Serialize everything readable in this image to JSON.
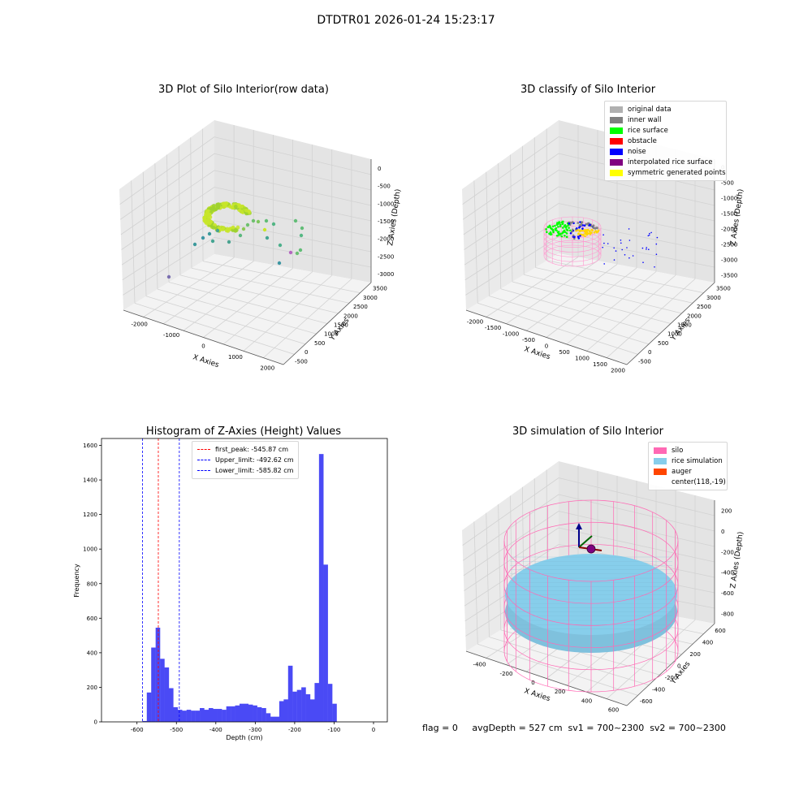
{
  "suptitle": "DTDTR01 2026-01-24 15:23:17",
  "footer": "flag = 0     avgDepth = 527 cm  sv1 = 700~2300  sv2 = 700~2300",
  "colors": {
    "histogram_bar": "#4a4af5",
    "first_peak_line": "#ff0000",
    "limit_line": "#0000ff",
    "silo": "#ff69b4",
    "rice_simulation": "#87ceeb",
    "auger": "#ff4500"
  },
  "chart_data": [
    {
      "type": "scatter",
      "title": "3D Plot of Silo Interior(row data)",
      "xlabel": "X Axies",
      "ylabel": "Y Axies",
      "zlabel": "Z Axies (Depth)",
      "xticks": [
        "-2000",
        "-1000",
        "0",
        "1000",
        "2000"
      ],
      "yticks": [
        "-500",
        "0",
        "500",
        "1000",
        "1500",
        "2000",
        "2500",
        "3000",
        "3500"
      ],
      "zticks": [
        "0",
        "-500",
        "-1000",
        "-1500",
        "-2000",
        "-2500",
        "-3000"
      ],
      "xlim": [
        -2300,
        2300
      ],
      "ylim": [
        -700,
        3700
      ],
      "zlim": [
        -3200,
        200
      ]
    },
    {
      "type": "scatter",
      "title": "3D classify of Silo Interior",
      "xlabel": "X Axies",
      "ylabel": "Y Axies",
      "zlabel": "Z Axies (Depth)",
      "xticks": [
        "-2000",
        "-1500",
        "-1000",
        "-500",
        "0",
        "500",
        "1000",
        "1500",
        "2000"
      ],
      "yticks": [
        "-500",
        "0",
        "500",
        "1000",
        "1500",
        "2000",
        "2500",
        "3000",
        "3500"
      ],
      "zticks": [
        "0",
        "-500",
        "-1000",
        "-1500",
        "-2000",
        "-2500",
        "-3000",
        "-3500"
      ],
      "legend": [
        {
          "label": "original data",
          "color": "#b0b0b0"
        },
        {
          "label": "inner wall",
          "color": "#808080"
        },
        {
          "label": "rice surface",
          "color": "#00ff00"
        },
        {
          "label": "obstacle",
          "color": "#ff0000"
        },
        {
          "label": "noise",
          "color": "#0000ff"
        },
        {
          "label": "interpolated rice surface",
          "color": "#800080"
        },
        {
          "label": "symmetric generated points",
          "color": "#ffff00"
        }
      ],
      "legend_position": "top-right"
    },
    {
      "type": "bar",
      "title": "Histogram of Z-Axies (Height) Values",
      "xlabel": "Depth (cm)",
      "ylabel": "Frequency",
      "xlim": [
        -690,
        35
      ],
      "ylim": [
        0,
        1640
      ],
      "xticks": [
        -600,
        -500,
        -400,
        -300,
        -200,
        -100,
        0
      ],
      "yticks": [
        0,
        200,
        400,
        600,
        800,
        1000,
        1200,
        1400,
        1600
      ],
      "bin_width": 11.17,
      "bins": [
        {
          "x0": -586.3,
          "y": 5
        },
        {
          "x0": -575.1,
          "y": 170
        },
        {
          "x0": -563.9,
          "y": 430
        },
        {
          "x0": -552.7,
          "y": 545
        },
        {
          "x0": -541.5,
          "y": 365
        },
        {
          "x0": -530.3,
          "y": 315
        },
        {
          "x0": -519.1,
          "y": 195
        },
        {
          "x0": -507.9,
          "y": 85
        },
        {
          "x0": -496.7,
          "y": 70
        },
        {
          "x0": -485.5,
          "y": 65
        },
        {
          "x0": -474.3,
          "y": 70
        },
        {
          "x0": -463.1,
          "y": 65
        },
        {
          "x0": -451.9,
          "y": 65
        },
        {
          "x0": -440.7,
          "y": 80
        },
        {
          "x0": -429.5,
          "y": 70
        },
        {
          "x0": -418.3,
          "y": 80
        },
        {
          "x0": -407.1,
          "y": 75
        },
        {
          "x0": -395.9,
          "y": 75
        },
        {
          "x0": -384.7,
          "y": 70
        },
        {
          "x0": -373.5,
          "y": 90
        },
        {
          "x0": -362.3,
          "y": 90
        },
        {
          "x0": -351.1,
          "y": 95
        },
        {
          "x0": -339.9,
          "y": 105
        },
        {
          "x0": -328.7,
          "y": 105
        },
        {
          "x0": -317.5,
          "y": 100
        },
        {
          "x0": -306.3,
          "y": 95
        },
        {
          "x0": -295.1,
          "y": 85
        },
        {
          "x0": -283.9,
          "y": 80
        },
        {
          "x0": -272.7,
          "y": 50
        },
        {
          "x0": -261.5,
          "y": 30
        },
        {
          "x0": -250.3,
          "y": 30
        },
        {
          "x0": -239.1,
          "y": 120
        },
        {
          "x0": -227.9,
          "y": 130
        },
        {
          "x0": -216.7,
          "y": 325
        },
        {
          "x0": -205.5,
          "y": 175
        },
        {
          "x0": -194.3,
          "y": 185
        },
        {
          "x0": -183.1,
          "y": 200
        },
        {
          "x0": -171.9,
          "y": 160
        },
        {
          "x0": -160.7,
          "y": 130
        },
        {
          "x0": -149.5,
          "y": 225
        },
        {
          "x0": -138.3,
          "y": 1550
        },
        {
          "x0": -127.1,
          "y": 910
        },
        {
          "x0": -115.9,
          "y": 220
        },
        {
          "x0": -104.7,
          "y": 105
        }
      ],
      "vlines": [
        {
          "label": "first_peak: -545.87 cm",
          "x": -545.87,
          "color": "#ff0000"
        },
        {
          "label": "Upper_limit: -492.62 cm",
          "x": -492.62,
          "color": "#0000ff"
        },
        {
          "label": "Lower_limit: -585.82 cm",
          "x": -585.82,
          "color": "#0000ff"
        }
      ],
      "legend_position": "top-center"
    },
    {
      "type": "scatter",
      "title": "3D simulation of Silo Interior",
      "xlabel": "X Axies",
      "ylabel": "Y Axies",
      "zlabel": "Z Axies (Depth)",
      "xticks": [
        "-400",
        "-200",
        "0",
        "200",
        "400",
        "600"
      ],
      "yticks": [
        "-600",
        "-400",
        "-200",
        "0",
        "200",
        "400",
        "600"
      ],
      "zticks": [
        "200",
        "0",
        "-200",
        "-400",
        "-600",
        "-800"
      ],
      "legend": [
        {
          "label": "silo",
          "color": "#ff69b4"
        },
        {
          "label": "rice simulation",
          "color": "#87ceeb"
        },
        {
          "label": "auger",
          "color": "#ff4500"
        },
        {
          "label": "center(118,-19)",
          "color": ""
        }
      ],
      "legend_position": "top-right"
    }
  ]
}
